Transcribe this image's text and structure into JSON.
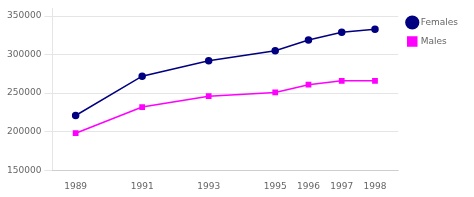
{
  "chart_data": {
    "type": "line",
    "x": [
      1989,
      1991,
      1993,
      1995,
      1996,
      1997,
      1998
    ],
    "series": [
      {
        "name": "Females",
        "color": "#000080",
        "marker": "circle",
        "values": [
          221000,
          272000,
          292000,
          305000,
          319000,
          329000,
          333000
        ]
      },
      {
        "name": "Males",
        "color": "#FF00FF",
        "marker": "square",
        "values": [
          198000,
          232000,
          246000,
          251000,
          261000,
          266000,
          266000
        ]
      }
    ],
    "xlim": [
      1988.3,
      1998.7
    ],
    "xticks": [
      1989,
      1991,
      1993,
      1995,
      1996,
      1997,
      1998
    ],
    "ylim": [
      150000,
      360000
    ],
    "yticks": [
      150000,
      200000,
      250000,
      300000,
      350000
    ],
    "grid": "y",
    "legend": "right"
  }
}
